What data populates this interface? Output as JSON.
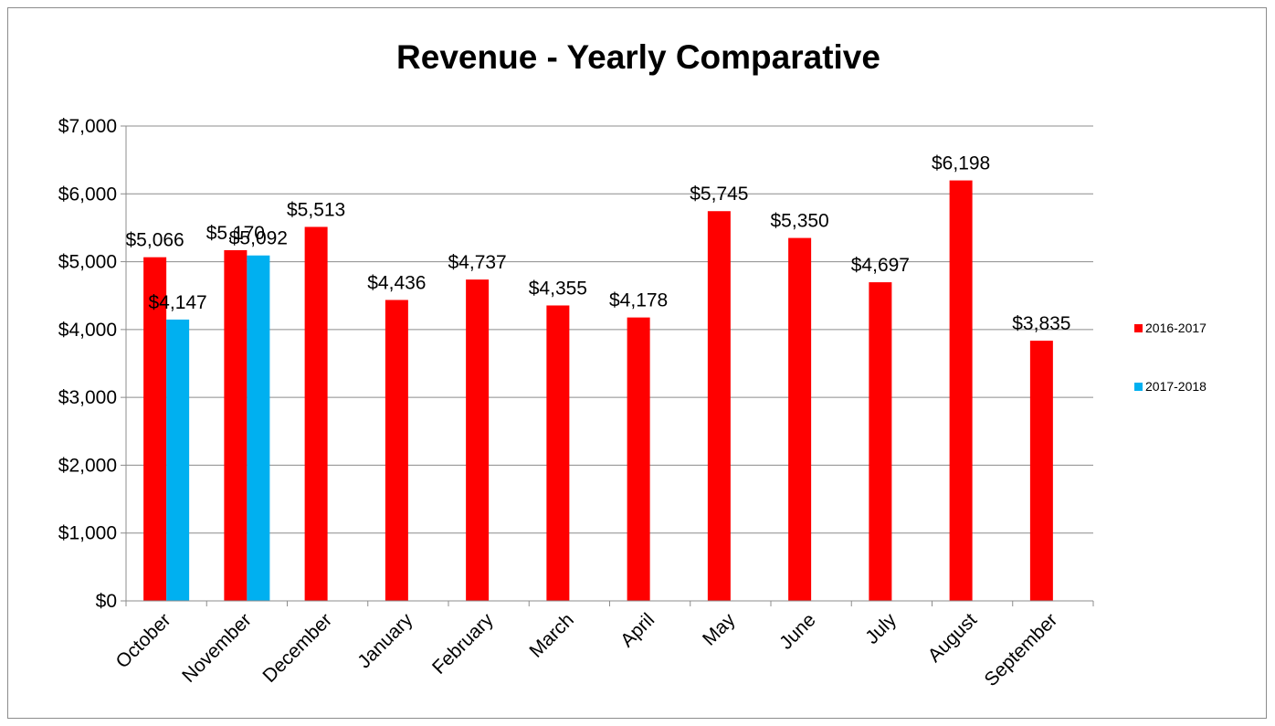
{
  "chart_data": {
    "type": "bar",
    "title": "Revenue - Yearly Comparative",
    "xlabel": "",
    "ylabel": "",
    "categories": [
      "October",
      "November",
      "December",
      "January",
      "February",
      "March",
      "April",
      "May",
      "June",
      "July",
      "August",
      "September"
    ],
    "series": [
      {
        "name": "2016-2017",
        "color": "#ff0000",
        "values": [
          5066,
          5170,
          5513,
          4436,
          4737,
          4355,
          4178,
          5745,
          5350,
          4697,
          6198,
          3835
        ],
        "labels": [
          "$5,066",
          "$5,170",
          "$5,513",
          "$4,436",
          "$4,737",
          "$4,355",
          "$4,178",
          "$5,745",
          "$5,350",
          "$4,697",
          "$6,198",
          "$3,835"
        ]
      },
      {
        "name": "2017-2018",
        "color": "#00b0f0",
        "values": [
          4147,
          5092,
          null,
          null,
          null,
          null,
          null,
          null,
          null,
          null,
          null,
          null
        ],
        "labels": [
          "$4,147",
          "$5,092",
          null,
          null,
          null,
          null,
          null,
          null,
          null,
          null,
          null,
          null
        ]
      }
    ],
    "ylim": [
      0,
      7000
    ],
    "yticks": [
      0,
      1000,
      2000,
      3000,
      4000,
      5000,
      6000,
      7000
    ],
    "ytick_labels": [
      "$0",
      "$1,000",
      "$2,000",
      "$3,000",
      "$4,000",
      "$5,000",
      "$6,000",
      "$7,000"
    ],
    "grid": true,
    "legend_position": "right"
  }
}
